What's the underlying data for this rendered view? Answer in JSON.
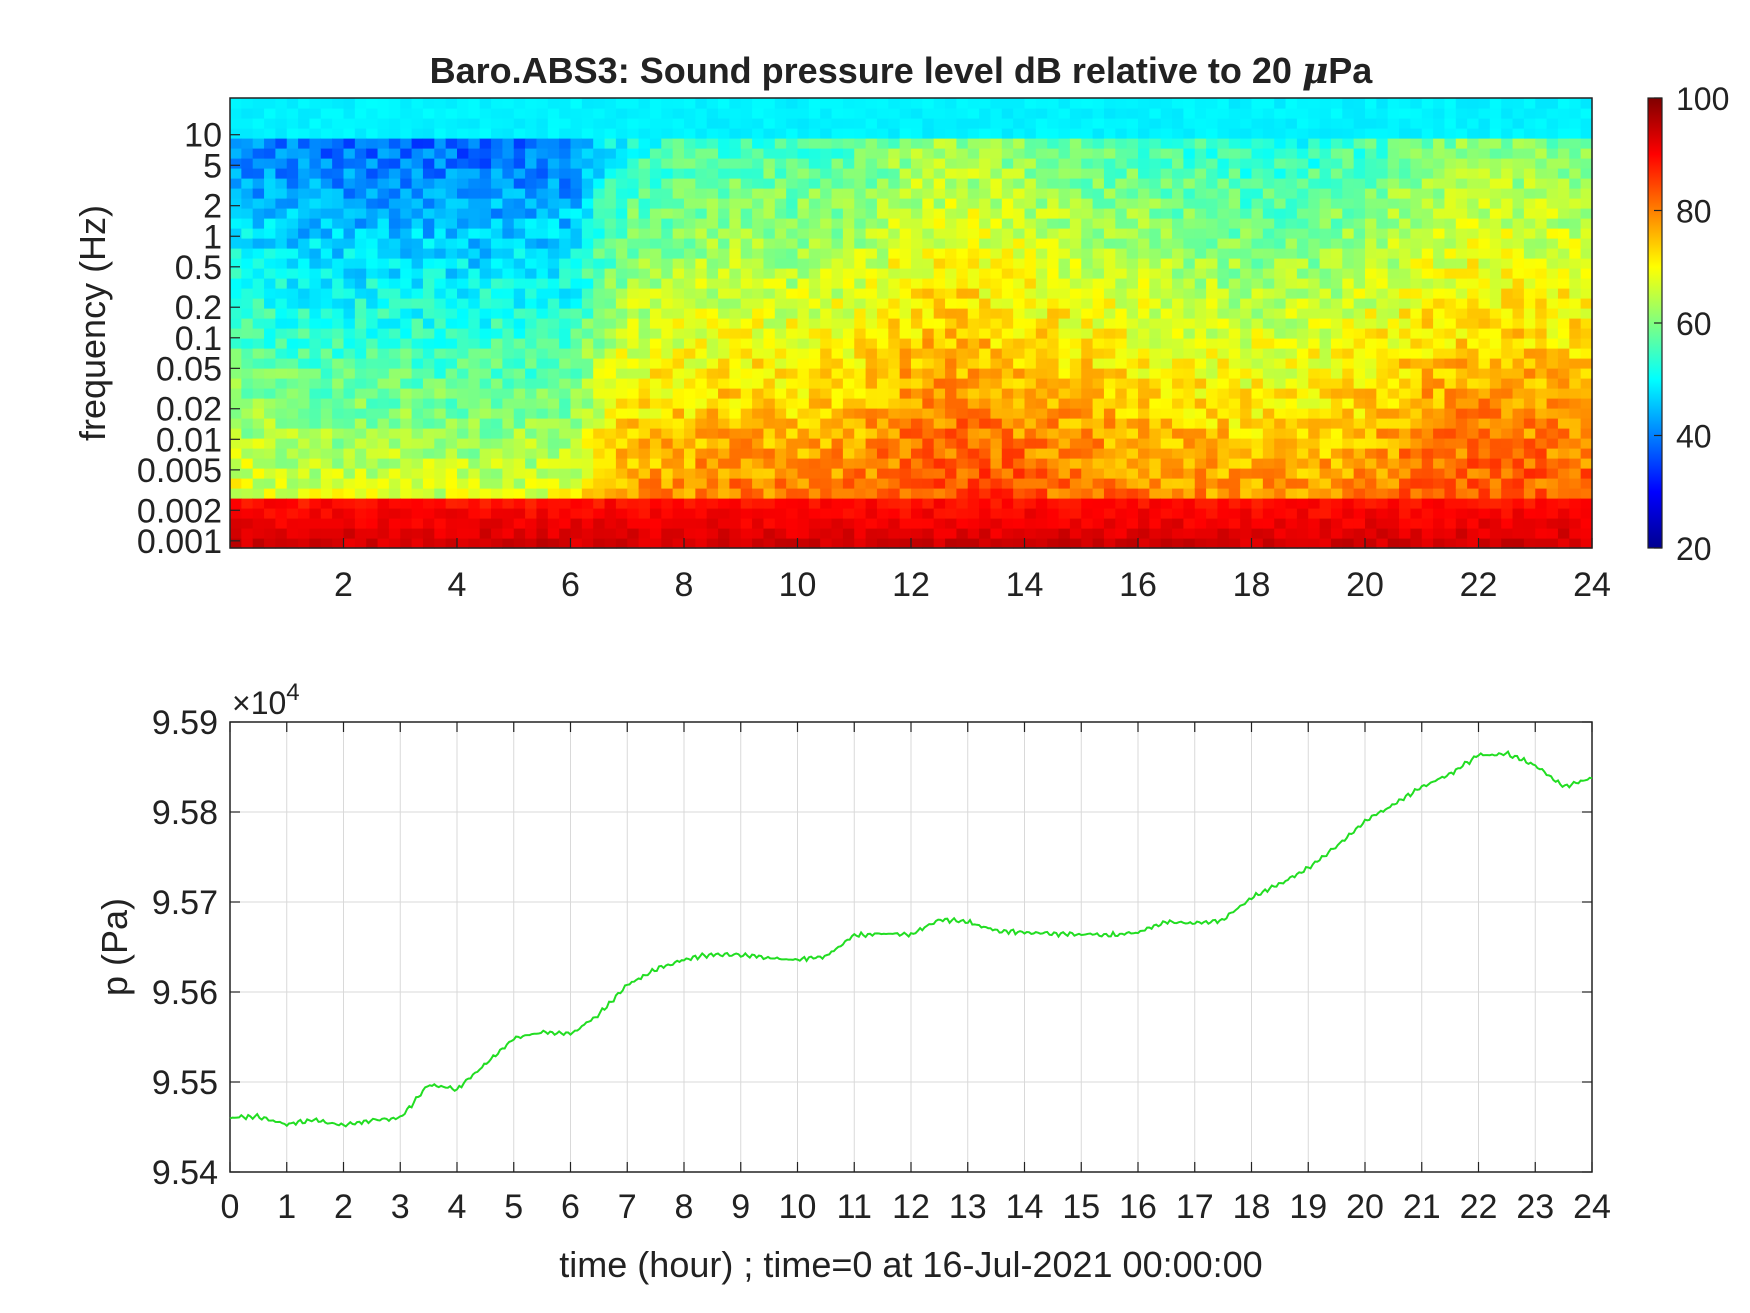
{
  "colors": {
    "line": "#22dd22",
    "grid": "#d9d9d9",
    "axis": "#222222"
  },
  "chart_data": [
    {
      "type": "heatmap",
      "title_prefix": "Baro.ABS3: Sound pressure level dB relative to 20 ",
      "title_mu": "μ",
      "title_suffix": "Pa",
      "ylabel": "frequency (Hz)",
      "y_scale": "log",
      "ylim": [
        0.00085,
        23
      ],
      "yticks": [
        "10",
        "5",
        "2",
        "1",
        "0.5",
        "0.2",
        "0.1",
        "0.05",
        "0.02",
        "0.01",
        "0.005",
        "0.002",
        "0.001"
      ],
      "xlim": [
        0,
        24
      ],
      "xticks": [
        "2",
        "4",
        "6",
        "8",
        "10",
        "12",
        "14",
        "16",
        "18",
        "20",
        "22",
        "24"
      ],
      "colormap": "jet",
      "colorbar": {
        "range": [
          20,
          100
        ],
        "ticks": [
          "100",
          "80",
          "60",
          "40",
          "20"
        ]
      },
      "approx_profile": {
        "hours": [
          0,
          1,
          2,
          3,
          4,
          5,
          6,
          6.5,
          7,
          8,
          9,
          10,
          11,
          12,
          13,
          14,
          15,
          16,
          17,
          18,
          19,
          20,
          21,
          22,
          23,
          24
        ],
        "activity_level": [
          0.25,
          0.2,
          0.18,
          0.18,
          0.17,
          0.18,
          0.2,
          0.45,
          0.6,
          0.65,
          0.7,
          0.68,
          0.72,
          0.85,
          0.88,
          0.82,
          0.75,
          0.7,
          0.65,
          0.6,
          0.62,
          0.68,
          0.8,
          0.85,
          0.82,
          0.8
        ],
        "high_frequency_level_db": 48,
        "low_frequency_level_db": 90
      }
    },
    {
      "type": "line",
      "ylabel": "p (Pa)",
      "xlabel": "time (hour) ; time=0 at 16-Jul-2021 00:00:00",
      "y_exponent_base": "×10",
      "y_exponent_power": "4",
      "xlim": [
        0,
        24
      ],
      "ylim": [
        95400,
        95900
      ],
      "xticks": [
        "0",
        "1",
        "2",
        "3",
        "4",
        "5",
        "6",
        "7",
        "8",
        "9",
        "10",
        "11",
        "12",
        "13",
        "14",
        "15",
        "16",
        "17",
        "18",
        "19",
        "20",
        "21",
        "22",
        "23",
        "24"
      ],
      "yticks": [
        "9.59",
        "9.58",
        "9.57",
        "9.56",
        "9.55",
        "9.54"
      ],
      "grid": true,
      "series": [
        {
          "x": [
            0,
            0.5,
            1,
            1.5,
            2,
            2.5,
            3,
            3.5,
            4,
            4.5,
            5,
            5.5,
            6,
            6.5,
            7,
            7.5,
            8,
            8.5,
            9,
            9.5,
            10,
            10.5,
            11,
            11.5,
            12,
            12.5,
            13,
            13.5,
            14,
            14.5,
            15,
            15.5,
            16,
            16.5,
            17,
            17.5,
            18,
            18.5,
            19,
            19.5,
            20,
            20.5,
            21,
            21.5,
            22,
            22.5,
            23,
            23.5,
            24
          ],
          "y": [
            95460,
            95462,
            95453,
            95458,
            95452,
            95457,
            95460,
            95497,
            95492,
            95520,
            95548,
            95555,
            95553,
            95575,
            95608,
            95625,
            95636,
            95642,
            95641,
            95638,
            95636,
            95640,
            95663,
            95665,
            95664,
            95680,
            95678,
            95668,
            95666,
            95665,
            95664,
            95663,
            95666,
            95678,
            95676,
            95680,
            95705,
            95720,
            95738,
            95762,
            95790,
            95808,
            95828,
            95842,
            95863,
            95865,
            95852,
            95828,
            95838
          ]
        }
      ]
    }
  ]
}
